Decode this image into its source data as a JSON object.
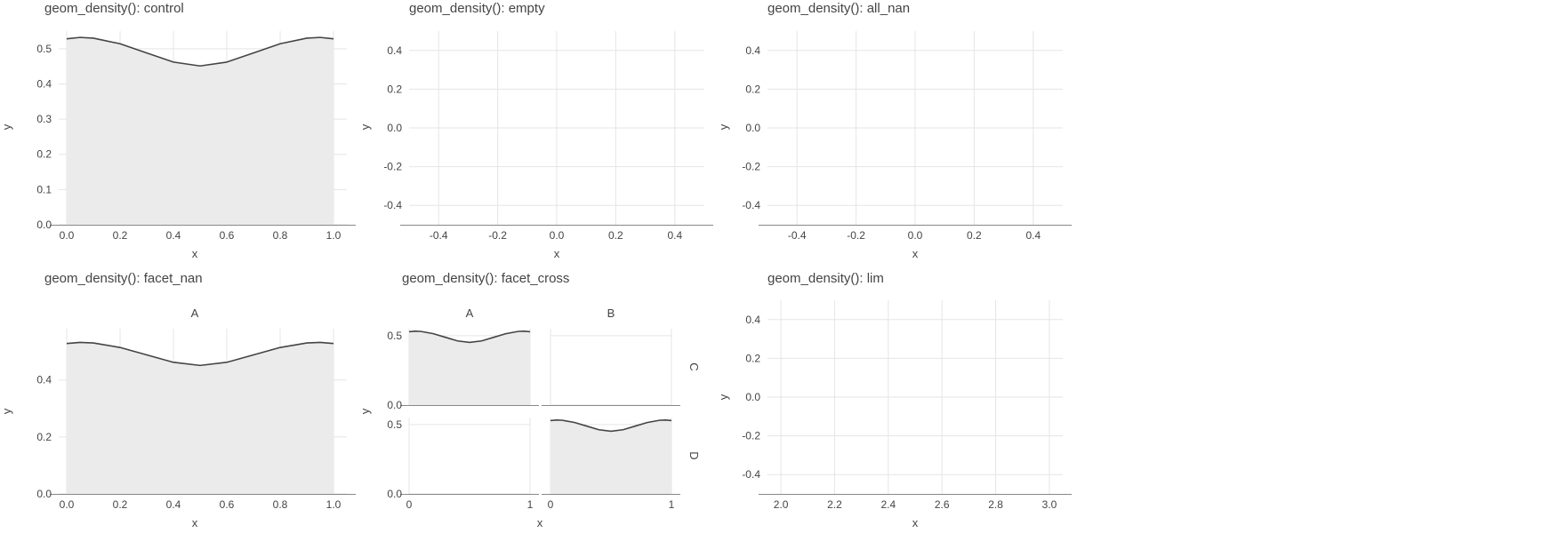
{
  "chart_data": [
    {
      "id": "control",
      "type": "area",
      "title": "geom_density(): control",
      "xlabel": "x",
      "ylabel": "y",
      "xlim": [
        -0.03,
        1.05
      ],
      "ylim": [
        0,
        0.55
      ],
      "xticks": [
        0,
        0.2,
        0.4,
        0.6,
        0.8,
        1
      ],
      "xtick_labels": [
        "0.0",
        "0.2",
        "0.4",
        "0.6",
        "0.8",
        "1.0"
      ],
      "yticks": [
        0,
        0.1,
        0.2,
        0.3,
        0.4,
        0.5
      ],
      "ytick_labels": [
        "0.0",
        "0.1",
        "0.2",
        "0.3",
        "0.4",
        "0.5"
      ],
      "grid": true,
      "panels": [
        {
          "strip_top": "",
          "x": [
            0,
            0.05,
            0.1,
            0.2,
            0.3,
            0.4,
            0.5,
            0.6,
            0.7,
            0.8,
            0.9,
            0.95,
            1
          ],
          "y": [
            0.528,
            0.532,
            0.53,
            0.514,
            0.488,
            0.462,
            0.451,
            0.462,
            0.488,
            0.514,
            0.53,
            0.532,
            0.528
          ]
        }
      ]
    },
    {
      "id": "empty",
      "type": "area",
      "title": "geom_density(): empty",
      "xlabel": "x",
      "ylabel": "y",
      "xlim": [
        -0.5,
        0.5
      ],
      "ylim": [
        -0.5,
        0.5
      ],
      "xticks": [
        -0.4,
        -0.2,
        0,
        0.2,
        0.4
      ],
      "xtick_labels": [
        "-0.4",
        "-0.2",
        "0.0",
        "0.2",
        "0.4"
      ],
      "yticks": [
        -0.4,
        -0.2,
        0,
        0.2,
        0.4
      ],
      "ytick_labels": [
        "-0.4",
        "-0.2",
        "0.0",
        "0.2",
        "0.4"
      ],
      "grid": true,
      "panels": [
        {
          "strip_top": "",
          "x": [],
          "y": []
        }
      ]
    },
    {
      "id": "all_nan",
      "type": "area",
      "title": "geom_density(): all_nan",
      "xlabel": "x",
      "ylabel": "y",
      "xlim": [
        -0.5,
        0.5
      ],
      "ylim": [
        -0.5,
        0.5
      ],
      "xticks": [
        -0.4,
        -0.2,
        0,
        0.2,
        0.4
      ],
      "xtick_labels": [
        "-0.4",
        "-0.2",
        "0.0",
        "0.2",
        "0.4"
      ],
      "yticks": [
        -0.4,
        -0.2,
        0,
        0.2,
        0.4
      ],
      "ytick_labels": [
        "-0.4",
        "-0.2",
        "0.0",
        "0.2",
        "0.4"
      ],
      "grid": true,
      "panels": [
        {
          "strip_top": "",
          "x": [],
          "y": []
        }
      ]
    },
    {
      "id": "facet_nan",
      "type": "area",
      "title": "geom_density(): facet_nan",
      "xlabel": "x",
      "ylabel": "y",
      "xlim": [
        -0.03,
        1.05
      ],
      "ylim": [
        0,
        0.58
      ],
      "xticks": [
        0,
        0.2,
        0.4,
        0.6,
        0.8,
        1
      ],
      "xtick_labels": [
        "0.0",
        "0.2",
        "0.4",
        "0.6",
        "0.8",
        "1.0"
      ],
      "yticks": [
        0,
        0.2,
        0.4
      ],
      "ytick_labels": [
        "0.0",
        "0.2",
        "0.4"
      ],
      "grid": true,
      "panels": [
        {
          "strip_top": "A",
          "x": [
            0,
            0.05,
            0.1,
            0.2,
            0.3,
            0.4,
            0.5,
            0.6,
            0.7,
            0.8,
            0.9,
            0.95,
            1
          ],
          "y": [
            0.528,
            0.532,
            0.53,
            0.514,
            0.488,
            0.462,
            0.451,
            0.462,
            0.488,
            0.514,
            0.53,
            0.532,
            0.528
          ]
        }
      ]
    },
    {
      "id": "facet_cross",
      "type": "area",
      "title": "geom_density(): facet_cross",
      "xlabel": "x",
      "ylabel": "y",
      "xlim": [
        0,
        1
      ],
      "ylim": [
        0,
        0.55
      ],
      "xticks": [
        0,
        1
      ],
      "xtick_labels": [
        "0",
        "1"
      ],
      "yticks": [
        0,
        0.5
      ],
      "ytick_labels": [
        "0.0",
        "0.5"
      ],
      "grid": true,
      "facet_cols": [
        "A",
        "B"
      ],
      "facet_rows": [
        "C",
        "D"
      ],
      "panels": [
        {
          "col": "A",
          "row": "C",
          "x": [
            0,
            0.05,
            0.1,
            0.2,
            0.3,
            0.4,
            0.5,
            0.6,
            0.7,
            0.8,
            0.9,
            0.95,
            1
          ],
          "y": [
            0.528,
            0.532,
            0.53,
            0.514,
            0.488,
            0.462,
            0.451,
            0.462,
            0.488,
            0.514,
            0.53,
            0.532,
            0.528
          ]
        },
        {
          "col": "B",
          "row": "C",
          "x": [],
          "y": []
        },
        {
          "col": "A",
          "row": "D",
          "x": [],
          "y": []
        },
        {
          "col": "B",
          "row": "D",
          "x": [
            0,
            0.05,
            0.1,
            0.2,
            0.3,
            0.4,
            0.5,
            0.6,
            0.7,
            0.8,
            0.9,
            0.95,
            1
          ],
          "y": [
            0.528,
            0.532,
            0.53,
            0.514,
            0.488,
            0.462,
            0.451,
            0.462,
            0.488,
            0.514,
            0.53,
            0.532,
            0.528
          ]
        }
      ]
    },
    {
      "id": "lim",
      "type": "area",
      "title": "geom_density(): lim",
      "xlabel": "x",
      "ylabel": "y",
      "xlim": [
        1.95,
        3.05
      ],
      "ylim": [
        -0.5,
        0.5
      ],
      "xticks": [
        2,
        2.2,
        2.4,
        2.6,
        2.8,
        3
      ],
      "xtick_labels": [
        "2.0",
        "2.2",
        "2.4",
        "2.6",
        "2.8",
        "3.0"
      ],
      "yticks": [
        -0.4,
        -0.2,
        0,
        0.2,
        0.4
      ],
      "ytick_labels": [
        "-0.4",
        "-0.2",
        "0.0",
        "0.2",
        "0.4"
      ],
      "grid": true,
      "panels": [
        {
          "strip_top": "",
          "x": [],
          "y": []
        }
      ]
    }
  ],
  "colors": {
    "fill": "#ebebeb",
    "line": "#444444",
    "grid": "#e5e5e5",
    "axis": "#888888",
    "text": "#444444"
  }
}
